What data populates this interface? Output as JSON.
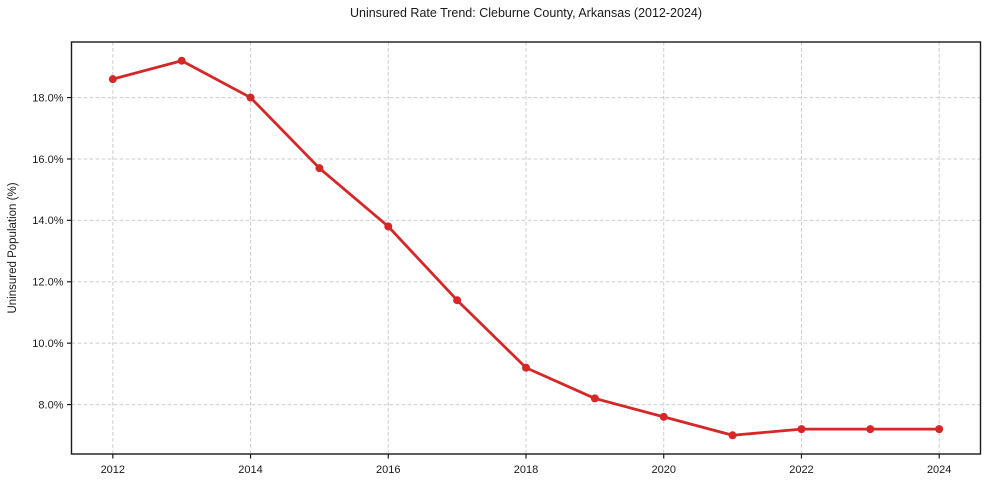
{
  "chart_data": {
    "type": "line",
    "title": "Uninsured Rate Trend: Cleburne County, Arkansas (2012-2024)",
    "xlabel": "",
    "ylabel": "Uninsured Population (%)",
    "x": [
      2012,
      2013,
      2014,
      2015,
      2016,
      2017,
      2018,
      2019,
      2020,
      2021,
      2022,
      2023,
      2024
    ],
    "series": [
      {
        "color": "#d62728",
        "marker": "circle",
        "values": [
          18.6,
          19.2,
          18.0,
          15.7,
          13.8,
          11.4,
          9.2,
          8.2,
          7.6,
          7.0,
          7.2,
          7.2,
          7.2
        ]
      }
    ],
    "xticks": {
      "values": [
        2012,
        2014,
        2016,
        2018,
        2020,
        2022,
        2024
      ],
      "labels": [
        "2012",
        "2014",
        "2016",
        "2018",
        "2020",
        "2022",
        "2024"
      ]
    },
    "yticks": {
      "values": [
        8,
        10,
        12,
        14,
        16,
        18
      ],
      "labels": [
        "8.0%",
        "10.0%",
        "12.0%",
        "14.0%",
        "16.0%",
        "18.0%"
      ]
    },
    "xlim": [
      2011.4,
      2024.6
    ],
    "ylim": [
      6.39,
      19.81
    ],
    "grid": true,
    "grid_style": "dashed",
    "grid_color": "#cdcdcd",
    "axis_color": "#1a1a1a",
    "text_color": "#1a1a1a",
    "background_color": "#ffffff",
    "legend": "none"
  }
}
